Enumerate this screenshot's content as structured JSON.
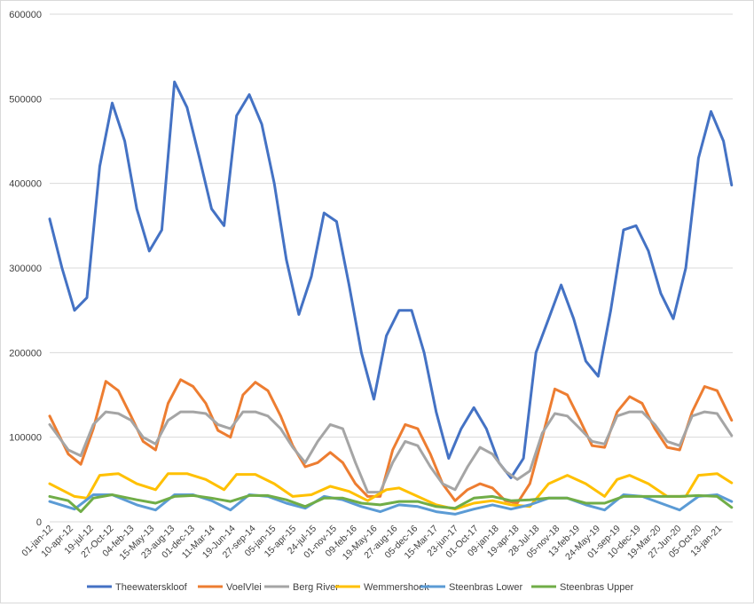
{
  "chart_data": {
    "type": "line",
    "title": "",
    "xlabel": "",
    "ylabel": "",
    "ylim": [
      0,
      600000
    ],
    "yticks": [
      0,
      100000,
      200000,
      300000,
      400000,
      500000,
      600000
    ],
    "ytick_labels": [
      "0",
      "100000",
      "200000",
      "300000",
      "400000",
      "500000",
      "600000"
    ],
    "xlim": [
      "2012-01-01",
      "2021-02-15"
    ],
    "x_tick_labels": [
      "01-jan-12",
      "10-apr-12",
      "19-jul-12",
      "27-Oct-12",
      "04-feb-13",
      "15-May-13",
      "23-aug-13",
      "01-dec-13",
      "11-Mar-14",
      "19-Jun-14",
      "27-sep-14",
      "05-jan-15",
      "15-apr-15",
      "24-jul-15",
      "01-nov-15",
      "09-feb-16",
      "19-May-16",
      "27-aug-16",
      "05-dec-16",
      "15-Mar-17",
      "23-jun-17",
      "01-Oct-17",
      "09-jan-18",
      "19-apr-18",
      "28-Jul-18",
      "05-nov-18",
      "13-feb-19",
      "24-May-19",
      "01-sep-19",
      "10-dec-19",
      "19-Mar-20",
      "27-Jun-20",
      "05-Oct-20",
      "13-jan-21"
    ],
    "grid": true,
    "legend_position": "bottom",
    "series": [
      {
        "name": "Theewaterskloof",
        "color": "#4472C4",
        "x": [
          "2012-01-01",
          "2012-03-01",
          "2012-05-01",
          "2012-07-01",
          "2012-09-01",
          "2012-11-01",
          "2013-01-01",
          "2013-03-01",
          "2013-05-01",
          "2013-07-01",
          "2013-09-01",
          "2013-11-01",
          "2014-01-01",
          "2014-03-01",
          "2014-05-01",
          "2014-07-01",
          "2014-09-01",
          "2014-11-01",
          "2015-01-01",
          "2015-03-01",
          "2015-05-01",
          "2015-07-01",
          "2015-09-01",
          "2015-11-01",
          "2016-01-01",
          "2016-03-01",
          "2016-05-01",
          "2016-07-01",
          "2016-09-01",
          "2016-11-01",
          "2017-01-01",
          "2017-03-01",
          "2017-05-01",
          "2017-07-01",
          "2017-09-01",
          "2017-11-01",
          "2018-01-01",
          "2018-03-01",
          "2018-05-01",
          "2018-07-01",
          "2018-09-01",
          "2018-11-01",
          "2019-01-01",
          "2019-03-01",
          "2019-05-01",
          "2019-07-01",
          "2019-09-01",
          "2019-11-01",
          "2020-01-01",
          "2020-03-01",
          "2020-05-01",
          "2020-07-01",
          "2020-09-01",
          "2020-11-01",
          "2021-01-01",
          "2021-02-10"
        ],
        "values": [
          358000,
          300000,
          250000,
          265000,
          420000,
          495000,
          450000,
          370000,
          320000,
          345000,
          520000,
          490000,
          430000,
          370000,
          350000,
          480000,
          505000,
          470000,
          400000,
          310000,
          245000,
          290000,
          365000,
          355000,
          280000,
          200000,
          145000,
          220000,
          250000,
          250000,
          200000,
          130000,
          75000,
          110000,
          135000,
          110000,
          70000,
          52000,
          75000,
          200000,
          240000,
          280000,
          240000,
          190000,
          172000,
          250000,
          345000,
          350000,
          320000,
          270000,
          240000,
          300000,
          430000,
          485000,
          450000,
          398000
        ]
      },
      {
        "name": "VoelVlei",
        "color": "#ED7D31",
        "x": [
          "2012-01-01",
          "2012-04-01",
          "2012-06-01",
          "2012-08-01",
          "2012-10-01",
          "2012-12-01",
          "2013-02-01",
          "2013-04-01",
          "2013-06-01",
          "2013-08-01",
          "2013-10-01",
          "2013-12-01",
          "2014-02-01",
          "2014-04-01",
          "2014-06-01",
          "2014-08-01",
          "2014-10-01",
          "2014-12-01",
          "2015-02-01",
          "2015-04-01",
          "2015-06-01",
          "2015-08-01",
          "2015-10-01",
          "2015-12-01",
          "2016-02-01",
          "2016-04-01",
          "2016-06-01",
          "2016-08-01",
          "2016-10-01",
          "2016-12-01",
          "2017-02-01",
          "2017-04-01",
          "2017-06-01",
          "2017-08-01",
          "2017-10-01",
          "2017-12-01",
          "2018-02-01",
          "2018-04-01",
          "2018-06-01",
          "2018-08-01",
          "2018-10-01",
          "2018-12-01",
          "2019-02-01",
          "2019-04-01",
          "2019-06-01",
          "2019-08-01",
          "2019-10-01",
          "2019-12-01",
          "2020-02-01",
          "2020-04-01",
          "2020-06-01",
          "2020-08-01",
          "2020-10-01",
          "2020-12-01",
          "2021-02-10"
        ],
        "values": [
          125000,
          80000,
          68000,
          110000,
          166000,
          155000,
          125000,
          95000,
          85000,
          140000,
          168000,
          160000,
          140000,
          108000,
          100000,
          150000,
          165000,
          155000,
          125000,
          90000,
          65000,
          70000,
          82000,
          70000,
          45000,
          30000,
          30000,
          85000,
          115000,
          110000,
          80000,
          45000,
          25000,
          38000,
          45000,
          40000,
          25000,
          22000,
          45000,
          100000,
          157000,
          150000,
          120000,
          90000,
          88000,
          130000,
          148000,
          140000,
          110000,
          88000,
          85000,
          130000,
          160000,
          155000,
          120000
        ]
      },
      {
        "name": "Berg River",
        "color": "#A5A5A5",
        "x": [
          "2012-01-01",
          "2012-04-01",
          "2012-06-01",
          "2012-08-01",
          "2012-10-01",
          "2012-12-01",
          "2013-02-01",
          "2013-04-01",
          "2013-06-01",
          "2013-08-01",
          "2013-10-01",
          "2013-12-01",
          "2014-02-01",
          "2014-04-01",
          "2014-06-01",
          "2014-08-01",
          "2014-10-01",
          "2014-12-01",
          "2015-02-01",
          "2015-04-01",
          "2015-06-01",
          "2015-08-01",
          "2015-10-01",
          "2015-12-01",
          "2016-02-01",
          "2016-04-01",
          "2016-06-01",
          "2016-08-01",
          "2016-10-01",
          "2016-12-01",
          "2017-02-01",
          "2017-04-01",
          "2017-06-01",
          "2017-08-01",
          "2017-10-01",
          "2017-12-01",
          "2018-02-01",
          "2018-04-01",
          "2018-06-01",
          "2018-08-01",
          "2018-10-01",
          "2018-12-01",
          "2019-02-01",
          "2019-04-01",
          "2019-06-01",
          "2019-08-01",
          "2019-10-01",
          "2019-12-01",
          "2020-02-01",
          "2020-04-01",
          "2020-06-01",
          "2020-08-01",
          "2020-10-01",
          "2020-12-01",
          "2021-02-10"
        ],
        "values": [
          115000,
          85000,
          78000,
          115000,
          130000,
          128000,
          120000,
          100000,
          92000,
          120000,
          130000,
          130000,
          128000,
          115000,
          110000,
          130000,
          130000,
          125000,
          110000,
          88000,
          70000,
          95000,
          115000,
          110000,
          70000,
          35000,
          35000,
          70000,
          95000,
          90000,
          65000,
          45000,
          38000,
          65000,
          88000,
          80000,
          60000,
          50000,
          60000,
          105000,
          128000,
          125000,
          110000,
          95000,
          92000,
          125000,
          130000,
          130000,
          115000,
          95000,
          90000,
          125000,
          130000,
          128000,
          102000
        ]
      },
      {
        "name": "Wemmershoek",
        "color": "#FFC000",
        "x": [
          "2012-01-01",
          "2012-05-01",
          "2012-07-01",
          "2012-09-01",
          "2012-12-01",
          "2013-03-01",
          "2013-06-01",
          "2013-08-01",
          "2013-11-01",
          "2014-02-01",
          "2014-05-01",
          "2014-07-01",
          "2014-10-01",
          "2015-01-01",
          "2015-04-01",
          "2015-07-01",
          "2015-10-01",
          "2016-01-01",
          "2016-04-01",
          "2016-07-01",
          "2016-09-01",
          "2016-12-01",
          "2017-03-01",
          "2017-06-01",
          "2017-09-01",
          "2017-12-01",
          "2018-03-01",
          "2018-06-01",
          "2018-09-01",
          "2018-12-01",
          "2019-03-01",
          "2019-06-01",
          "2019-08-01",
          "2019-10-01",
          "2020-01-01",
          "2020-04-01",
          "2020-07-01",
          "2020-09-01",
          "2020-12-01",
          "2021-02-10"
        ],
        "values": [
          45000,
          30000,
          28000,
          55000,
          57000,
          45000,
          38000,
          57000,
          57000,
          50000,
          38000,
          56000,
          56000,
          45000,
          30000,
          32000,
          42000,
          36000,
          25000,
          38000,
          40000,
          30000,
          20000,
          15000,
          22000,
          25000,
          20000,
          18000,
          45000,
          55000,
          45000,
          30000,
          50000,
          55000,
          45000,
          30000,
          30000,
          55000,
          57000,
          46000
        ]
      },
      {
        "name": "Steenbras Lower",
        "color": "#5B9BD5",
        "x": [
          "2012-01-01",
          "2012-05-01",
          "2012-08-01",
          "2012-11-01",
          "2013-03-01",
          "2013-06-01",
          "2013-09-01",
          "2013-12-01",
          "2014-03-01",
          "2014-06-01",
          "2014-09-01",
          "2014-12-01",
          "2015-03-01",
          "2015-06-01",
          "2015-09-01",
          "2015-12-01",
          "2016-03-01",
          "2016-06-01",
          "2016-09-01",
          "2016-12-01",
          "2017-03-01",
          "2017-06-01",
          "2017-09-01",
          "2017-12-01",
          "2018-03-01",
          "2018-06-01",
          "2018-09-01",
          "2018-12-01",
          "2019-03-01",
          "2019-06-01",
          "2019-09-01",
          "2019-12-01",
          "2020-03-01",
          "2020-06-01",
          "2020-09-01",
          "2020-12-01",
          "2021-02-10"
        ],
        "values": [
          24000,
          15000,
          32000,
          32000,
          20000,
          14000,
          32000,
          32000,
          25000,
          14000,
          32000,
          30000,
          22000,
          16000,
          30000,
          26000,
          18000,
          12000,
          20000,
          18000,
          12000,
          9000,
          15000,
          20000,
          15000,
          20000,
          28000,
          28000,
          20000,
          14000,
          32000,
          30000,
          22000,
          14000,
          30000,
          32000,
          24000
        ]
      },
      {
        "name": "Steenbras Upper",
        "color": "#70AD47",
        "x": [
          "2012-01-01",
          "2012-04-01",
          "2012-06-01",
          "2012-08-01",
          "2012-11-01",
          "2013-03-01",
          "2013-06-01",
          "2013-09-01",
          "2013-12-01",
          "2014-03-01",
          "2014-06-01",
          "2014-09-01",
          "2014-12-01",
          "2015-03-01",
          "2015-06-01",
          "2015-09-01",
          "2015-12-01",
          "2016-03-01",
          "2016-06-01",
          "2016-09-01",
          "2016-12-01",
          "2017-03-01",
          "2017-06-01",
          "2017-09-01",
          "2017-12-01",
          "2018-03-01",
          "2018-06-01",
          "2018-09-01",
          "2018-12-01",
          "2019-03-01",
          "2019-06-01",
          "2019-09-01",
          "2019-12-01",
          "2020-03-01",
          "2020-06-01",
          "2020-09-01",
          "2020-12-01",
          "2021-02-10"
        ],
        "values": [
          30000,
          25000,
          12000,
          28000,
          32000,
          26000,
          22000,
          30000,
          31000,
          28000,
          24000,
          31000,
          31000,
          26000,
          18000,
          28000,
          28000,
          22000,
          20000,
          24000,
          24000,
          18000,
          16000,
          28000,
          30000,
          25000,
          26000,
          28000,
          28000,
          22000,
          22000,
          30000,
          30000,
          30000,
          30000,
          31000,
          30000,
          17000
        ]
      }
    ]
  }
}
